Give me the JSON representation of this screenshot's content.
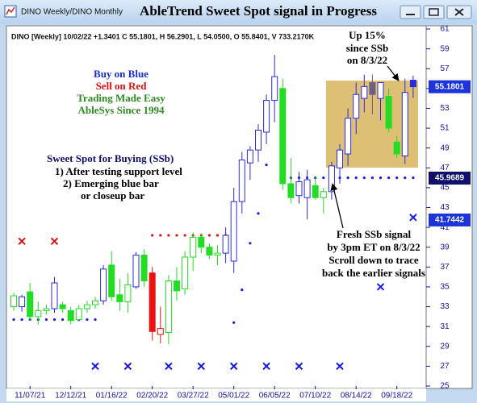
{
  "window_title": "DINO Weekly/DINO Monthly",
  "chart_data": {
    "type": "candlestick",
    "title": "AbleTrend Sweet Spot signal in Progress",
    "info": "DINO [Weekly] 10/02/22 +1.3401 C 55.1801, H 56.2901, L 54.0500, O 55.8401, V 733.2170K",
    "categories": [
      null,
      null,
      "11/07/21",
      null,
      null,
      null,
      null,
      "12/12/21",
      null,
      null,
      null,
      null,
      "01/16/22",
      null,
      null,
      null,
      null,
      "02/20/22",
      null,
      null,
      null,
      null,
      "03/27/22",
      null,
      null,
      null,
      null,
      "05/01/22",
      null,
      null,
      null,
      null,
      "06/05/22",
      null,
      null,
      null,
      null,
      "07/10/22",
      null,
      null,
      null,
      null,
      "08/14/22",
      null,
      null,
      null,
      null,
      "09/18/22",
      null,
      null
    ],
    "open": [
      33.0,
      33.0,
      34.5,
      32.0,
      32.6,
      32.8,
      33.2,
      32.6,
      31.7,
      32.8,
      33.2,
      33.6,
      37.2,
      34.2,
      33.5,
      35.0,
      38.2,
      36.4,
      30.2,
      30.4,
      35.6,
      34.8,
      38.0,
      40.0,
      39.0,
      38.2,
      38.4,
      37.6,
      43.6,
      47.5,
      48.8,
      50.6,
      53.8,
      55.0,
      45.4,
      44.2,
      44.0,
      45.2,
      44.0,
      44.6,
      47.0,
      48.4,
      52.0,
      54.0,
      55.6,
      54.0,
      54.2,
      49.6,
      48.2,
      55.8401
    ],
    "high": [
      34.4,
      34.2,
      35.4,
      33.5,
      33.2,
      36.0,
      33.5,
      33.0,
      33.2,
      33.6,
      34.0,
      37.2,
      38.6,
      35.8,
      36.4,
      38.5,
      38.8,
      37.0,
      33.0,
      36.2,
      37.0,
      38.6,
      40.5,
      40.4,
      39.4,
      39.2,
      41.0,
      45.0,
      48.6,
      49.2,
      51.4,
      54.4,
      58.4,
      56.0,
      48.0,
      46.6,
      46.8,
      46.2,
      45.0,
      47.6,
      49.4,
      53.0,
      55.6,
      56.4,
      56.4,
      55.6,
      55.0,
      50.2,
      56.0,
      56.2901
    ],
    "low": [
      32.6,
      32.5,
      31.6,
      31.2,
      32.2,
      32.4,
      32.4,
      31.2,
      31.5,
      32.4,
      32.8,
      33.2,
      33.6,
      32.6,
      32.4,
      34.8,
      35.0,
      29.6,
      29.3,
      29.2,
      33.6,
      34.2,
      36.6,
      38.4,
      37.8,
      37.2,
      37.4,
      36.4,
      42.4,
      45.8,
      47.6,
      49.4,
      51.6,
      44.8,
      43.4,
      43.4,
      41.8,
      43.8,
      42.4,
      43.8,
      45.4,
      47.2,
      50.4,
      52.6,
      52.4,
      51.8,
      50.6,
      48.0,
      47.4,
      54.05
    ],
    "close": [
      34.1,
      34.0,
      32.0,
      32.6,
      32.8,
      35.4,
      32.8,
      31.6,
      32.8,
      33.2,
      33.6,
      36.8,
      34.0,
      33.5,
      35.2,
      38.2,
      35.6,
      30.5,
      30.8,
      35.6,
      34.6,
      38.0,
      40.0,
      39.0,
      38.2,
      38.4,
      40.2,
      43.6,
      47.8,
      48.8,
      50.8,
      53.8,
      56.2,
      45.4,
      44.0,
      45.6,
      45.8,
      44.0,
      44.6,
      47.2,
      48.8,
      52.0,
      54.4,
      55.2,
      54.4,
      55.6,
      51.0,
      48.4,
      54.6,
      55.1801
    ],
    "candle_colors": [
      "#22dd22",
      "#2a2ae0",
      "#22dd22",
      "#22dd22",
      "#22dd22",
      "#2a2ae0",
      "#22dd22",
      "#22dd22",
      "#22dd22",
      "#22dd22",
      "#22dd22",
      "#2a2ae0",
      "#22dd22",
      "#22dd22",
      "#22dd22",
      "#2a2ae0",
      "#22dd22",
      "#ee1111",
      "#ee1111",
      "#22dd22",
      "#22dd22",
      "#22dd22",
      "#22dd22",
      "#22dd22",
      "#22dd22",
      "#22dd22",
      "#2a2ae0",
      "#2a2ae0",
      "#2a2ae0",
      "#2a2ae0",
      "#2a2ae0",
      "#2a2ae0",
      "#2a2ae0",
      "#22dd22",
      "#22dd22",
      "#2a2ae0",
      "#2a2ae0",
      "#22dd22",
      "#22dd22",
      "#2a2ae0",
      "#2a2ae0",
      "#2a2ae0",
      "#2a2ae0",
      "#2a2ae0",
      "#706080",
      "#2a2ae0",
      "#22dd22",
      "#22dd22",
      "#2a2ae0",
      "#2a2ae0"
    ],
    "blue_dots": [
      31.7,
      31.7,
      31.7,
      31.7,
      31.7,
      31.7,
      31.7,
      31.7,
      31.7,
      31.7,
      31.7,
      null,
      null,
      null,
      null,
      null,
      null,
      null,
      null,
      null,
      null,
      null,
      null,
      null,
      null,
      null,
      null,
      31.4,
      34.7,
      39.4,
      42.4,
      47.3,
      null,
      46.0,
      46.0,
      46.0,
      46.0,
      46.0,
      46.0,
      46.0,
      46.0,
      46.0,
      46.0,
      46.0,
      46.0,
      46.0,
      46.0,
      46.0,
      46.0,
      46.0
    ],
    "red_dots": [
      null,
      null,
      null,
      null,
      null,
      null,
      null,
      null,
      null,
      null,
      null,
      null,
      null,
      null,
      null,
      null,
      null,
      40.2,
      40.2,
      40.2,
      40.2,
      40.2,
      40.2,
      40.2,
      40.2,
      40.2,
      40.2,
      null,
      null,
      null,
      null,
      null,
      null,
      null,
      null,
      null,
      null,
      null,
      null,
      null,
      null,
      null,
      null,
      null,
      null,
      null,
      null,
      null,
      null,
      null
    ],
    "red_x": [
      null,
      39.6,
      null,
      null,
      null,
      39.6,
      null,
      null,
      null,
      null,
      null,
      null,
      null,
      null,
      null,
      null,
      null,
      null,
      null,
      null,
      null,
      null,
      null,
      null,
      null,
      null,
      null,
      null,
      null,
      null,
      null,
      null,
      null,
      null,
      null,
      null,
      null,
      null,
      null,
      null,
      null,
      null,
      null,
      null,
      null,
      null,
      null,
      null,
      null,
      null
    ],
    "blue_x": [
      null,
      null,
      null,
      null,
      null,
      null,
      null,
      null,
      null,
      null,
      27.0,
      null,
      null,
      null,
      27.0,
      null,
      null,
      null,
      null,
      27.0,
      null,
      null,
      null,
      27.0,
      null,
      null,
      null,
      27.0,
      null,
      null,
      null,
      27.0,
      null,
      null,
      null,
      27.0,
      null,
      null,
      null,
      null,
      27.0,
      null,
      null,
      null,
      null,
      35.0,
      null,
      null,
      null,
      42.0
    ],
    "price_tags": [
      {
        "value": 55.1801,
        "color": "#1c34d8"
      },
      {
        "value": 45.9689,
        "color": "#10106a"
      },
      {
        "value": 41.7442,
        "color": "#1c34d8"
      }
    ],
    "ylim": [
      25,
      61
    ],
    "yticks": [
      25,
      27,
      29,
      31,
      33,
      35,
      37,
      39,
      41,
      43,
      45,
      47,
      49,
      51,
      53,
      55,
      57,
      59,
      61
    ],
    "legend_notes": [
      "Buy on Blue",
      "Sell on Red",
      "Trading Made Easy",
      "AbleSys Since 1994"
    ],
    "ssb_notes": [
      "Sweet Spot for Buying (SSb)",
      "1) After testing support level",
      "2) Emerging blue bar",
      "or closeup bar"
    ],
    "gain_note": [
      "Up 15%",
      "since SSb",
      "on 8/3/22"
    ],
    "signal_note": [
      "Fresh SSb signal",
      "by 3pm ET on 8/3/22",
      "Scroll down to trace",
      "back the earlier signals"
    ]
  }
}
